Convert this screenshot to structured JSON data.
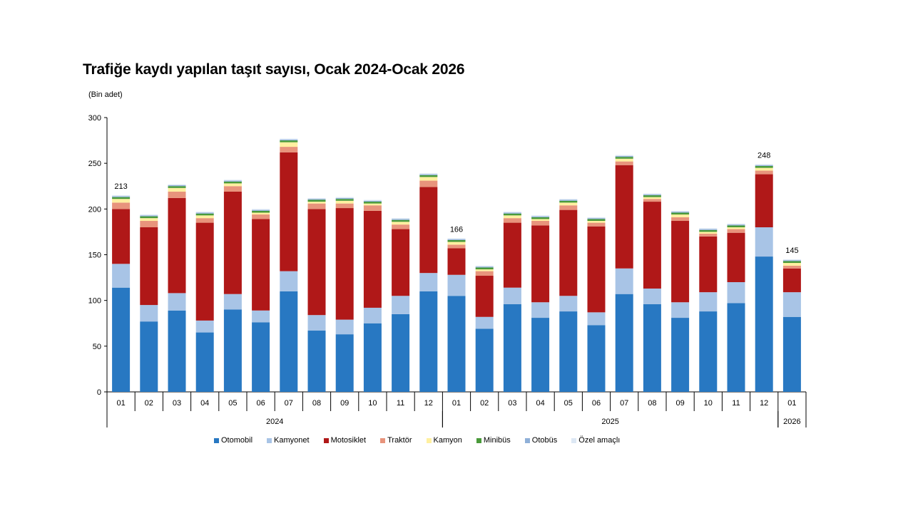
{
  "title": "Trafiğe kaydı yapılan taşıt sayısı, Ocak 2024-Ocak 2026",
  "unit": "(Bin adet)",
  "chart_data": {
    "type": "bar",
    "stacked": true,
    "categories": [
      "01",
      "02",
      "03",
      "04",
      "05",
      "06",
      "07",
      "08",
      "09",
      "10",
      "11",
      "12",
      "01",
      "02",
      "03",
      "04",
      "05",
      "06",
      "07",
      "08",
      "09",
      "10",
      "11",
      "12",
      "01"
    ],
    "year_groups": [
      {
        "label": "2024",
        "count": 12
      },
      {
        "label": "2025",
        "count": 12
      },
      {
        "label": "2026",
        "count": 1
      }
    ],
    "ylim": [
      0,
      300
    ],
    "yticks": [
      0,
      50,
      100,
      150,
      200,
      250,
      300
    ],
    "series": [
      {
        "name": "Otomobil",
        "color": "#2878c2",
        "values": [
          114,
          77,
          89,
          65,
          90,
          76,
          110,
          67,
          63,
          75,
          85,
          110,
          105,
          69,
          96,
          81,
          88,
          73,
          107,
          96,
          81,
          88,
          97,
          148,
          82
        ]
      },
      {
        "name": "Kamyonet",
        "color": "#a8c4e6",
        "values": [
          26,
          18,
          19,
          13,
          17,
          13,
          22,
          17,
          16,
          17,
          20,
          20,
          23,
          13,
          18,
          17,
          17,
          14,
          28,
          17,
          17,
          21,
          23,
          32,
          27
        ]
      },
      {
        "name": "Motosiklet",
        "color": "#b01818",
        "values": [
          60,
          85,
          104,
          107,
          112,
          100,
          130,
          116,
          122,
          106,
          73,
          94,
          29,
          45,
          71,
          84,
          94,
          94,
          113,
          95,
          89,
          61,
          54,
          58,
          26
        ]
      },
      {
        "name": "Traktör",
        "color": "#e8947c",
        "values": [
          7,
          7,
          7,
          5,
          6,
          5,
          6,
          6,
          5,
          6,
          5,
          7,
          4,
          5,
          5,
          5,
          5,
          4,
          4,
          3,
          4,
          3,
          4,
          4,
          3
        ]
      },
      {
        "name": "Kamyon",
        "color": "#fff0a0",
        "values": [
          4,
          3,
          4,
          3,
          3,
          2,
          5,
          2,
          3,
          2,
          3,
          4,
          3,
          2,
          3,
          2,
          3,
          2,
          3,
          2,
          3,
          2,
          2,
          3,
          3
        ]
      },
      {
        "name": "Minibüs",
        "color": "#4a9a3a",
        "values": [
          2,
          2,
          2,
          2,
          2,
          2,
          2,
          2,
          2,
          2,
          2,
          2,
          2,
          2,
          2,
          2,
          2,
          2,
          2,
          2,
          2,
          2,
          2,
          2,
          2
        ]
      },
      {
        "name": "Otobüs",
        "color": "#8fb0d8",
        "values": [
          1,
          1,
          1,
          1,
          1,
          1,
          1,
          1,
          1,
          1,
          1,
          1,
          1,
          1,
          1,
          1,
          1,
          1,
          1,
          1,
          1,
          1,
          1,
          1,
          1
        ]
      },
      {
        "name": "Özel amaçlı",
        "color": "#dde8f4",
        "values": [
          1,
          1,
          1,
          1,
          1,
          1,
          1,
          1,
          1,
          1,
          1,
          1,
          1,
          1,
          1,
          1,
          1,
          1,
          1,
          1,
          1,
          1,
          1,
          1,
          1
        ]
      }
    ],
    "annotations": [
      {
        "index": 0,
        "text": "213"
      },
      {
        "index": 12,
        "text": "166"
      },
      {
        "index": 23,
        "text": "248"
      },
      {
        "index": 24,
        "text": "145"
      }
    ],
    "grid": false,
    "legend_position": "bottom"
  }
}
